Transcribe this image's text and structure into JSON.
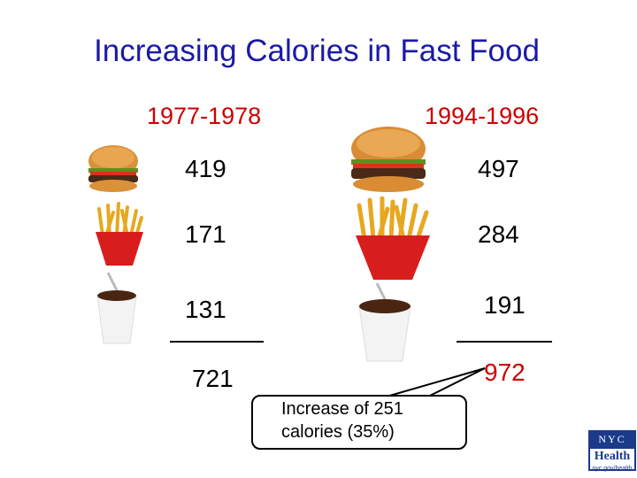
{
  "title": "Increasing Calories in Fast Food",
  "columns": [
    {
      "period": "1977-1978",
      "items": [
        {
          "food": "hamburger",
          "icon": "burger-icon",
          "calories": "419"
        },
        {
          "food": "french-fries",
          "icon": "fries-icon",
          "calories": "171"
        },
        {
          "food": "soft-drink",
          "icon": "soda-cup-icon",
          "calories": "131"
        }
      ],
      "total": "721"
    },
    {
      "period": "1994-1996",
      "items": [
        {
          "food": "hamburger",
          "icon": "burger-icon",
          "calories": "497"
        },
        {
          "food": "french-fries",
          "icon": "fries-icon",
          "calories": "284"
        },
        {
          "food": "soft-drink",
          "icon": "soda-cup-icon",
          "calories": "191"
        }
      ],
      "total": "972"
    }
  ],
  "callout": {
    "line1": "Increase of 251",
    "line2": "calories (35%)"
  },
  "logo": {
    "line1": "NYC",
    "line2": "Health",
    "line3": "nyc.gov/health"
  },
  "colors": {
    "title": "#1a1aa6",
    "accent_red": "#cc0000",
    "logo_blue": "#1b3a8a"
  }
}
